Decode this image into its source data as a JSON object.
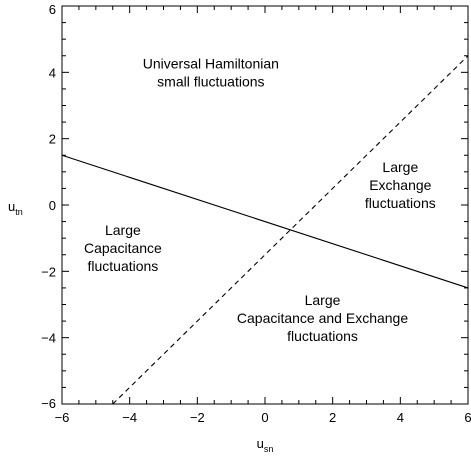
{
  "chart_data": {
    "type": "line",
    "xlabel": "u",
    "xlabel_sub": "sn",
    "ylabel": "u",
    "ylabel_sub": "tn",
    "xlim": [
      -6,
      6
    ],
    "ylim": [
      -6,
      6
    ],
    "xticks": [
      -6,
      -4,
      -2,
      0,
      2,
      4,
      6
    ],
    "yticks": [
      -6,
      -4,
      -2,
      0,
      2,
      4,
      6
    ],
    "xtick_labels": [
      "−6",
      "−4",
      "−2",
      "0",
      "2",
      "4",
      "6"
    ],
    "ytick_labels": [
      "−6",
      "−4",
      "−2",
      "0",
      "2",
      "4",
      "6"
    ],
    "grid": false,
    "series": [
      {
        "style": "solid",
        "color": "#000000",
        "x": [
          -6,
          6
        ],
        "y": [
          1.5,
          -2.5
        ]
      },
      {
        "style": "dashed",
        "color": "#000000",
        "x": [
          -4.5,
          6
        ],
        "y": [
          -6,
          4.5
        ]
      }
    ],
    "annotations": [
      {
        "id": "universal",
        "lines": [
          "Universal Hamiltonian",
          "small fluctuations"
        ],
        "x": -1.6,
        "y": 4.0
      },
      {
        "id": "exchange",
        "lines": [
          "Large",
          "Exchange",
          "fluctuations"
        ],
        "x": 4.0,
        "y": 0.6
      },
      {
        "id": "capacitance",
        "lines": [
          "Large",
          "Capacitance",
          "fluctuations"
        ],
        "x": -4.2,
        "y": -1.3
      },
      {
        "id": "cap-exchange",
        "lines": [
          "Large",
          "Capacitance and Exchange",
          "fluctuations"
        ],
        "x": 1.7,
        "y": -3.4
      }
    ]
  }
}
